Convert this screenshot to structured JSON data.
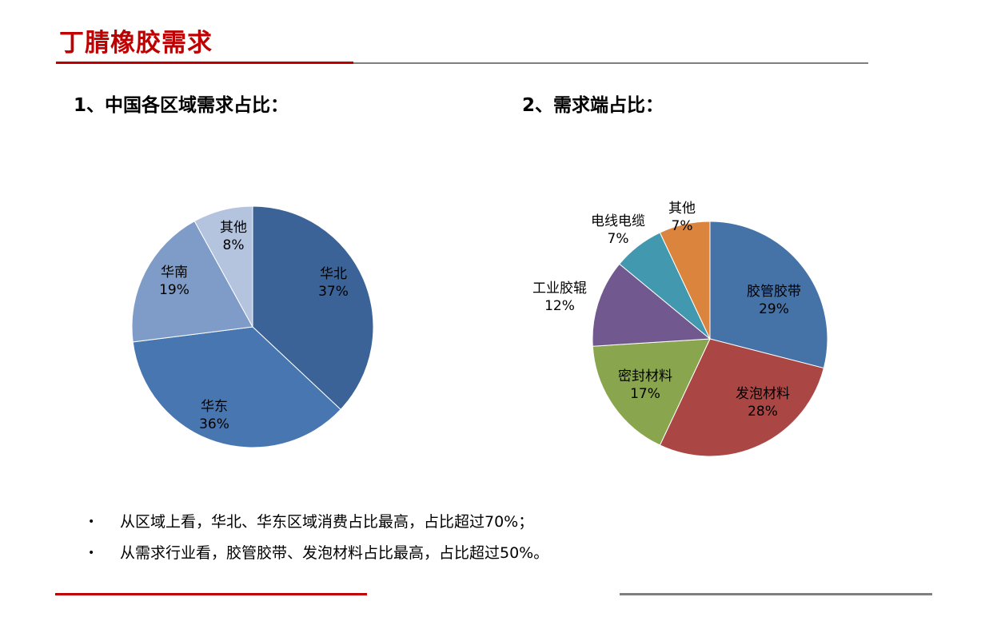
{
  "slide": {
    "title": "丁腈橡胶需求"
  },
  "bullets": [
    {
      "marker": "•",
      "text": "从区域上看，华北、华东区域消费占比最高，占比超过70%；"
    },
    {
      "marker": "•",
      "text": "从需求行业看，胶管胶带、发泡材料占比最高，占比超过50%。"
    }
  ],
  "chart_data": [
    {
      "type": "pie",
      "title": "1、中国各区域需求占比：",
      "slices": [
        {
          "label": "华北",
          "value": 37,
          "value_label": "37%",
          "color": "#3b6397"
        },
        {
          "label": "华东",
          "value": 36,
          "value_label": "36%",
          "color": "#4876b0"
        },
        {
          "label": "华南",
          "value": 19,
          "value_label": "19%",
          "color": "#7f9cc8"
        },
        {
          "label": "其他",
          "value": 8,
          "value_label": "8%",
          "color": "#b4c3de"
        }
      ]
    },
    {
      "type": "pie",
      "title": "2、需求端占比：",
      "slices": [
        {
          "label": "胶管胶带",
          "value": 29,
          "value_label": "29%",
          "color": "#4572a7"
        },
        {
          "label": "发泡材料",
          "value": 28,
          "value_label": "28%",
          "color": "#aa4643"
        },
        {
          "label": "密封材料",
          "value": 17,
          "value_label": "17%",
          "color": "#89a54e"
        },
        {
          "label": "工业胶辊",
          "value": 12,
          "value_label": "12%",
          "color": "#71588f"
        },
        {
          "label": "电线电缆",
          "value": 7,
          "value_label": "7%",
          "color": "#4198af"
        },
        {
          "label": "其他",
          "value": 7,
          "value_label": "7%",
          "color": "#db843d"
        }
      ]
    }
  ]
}
